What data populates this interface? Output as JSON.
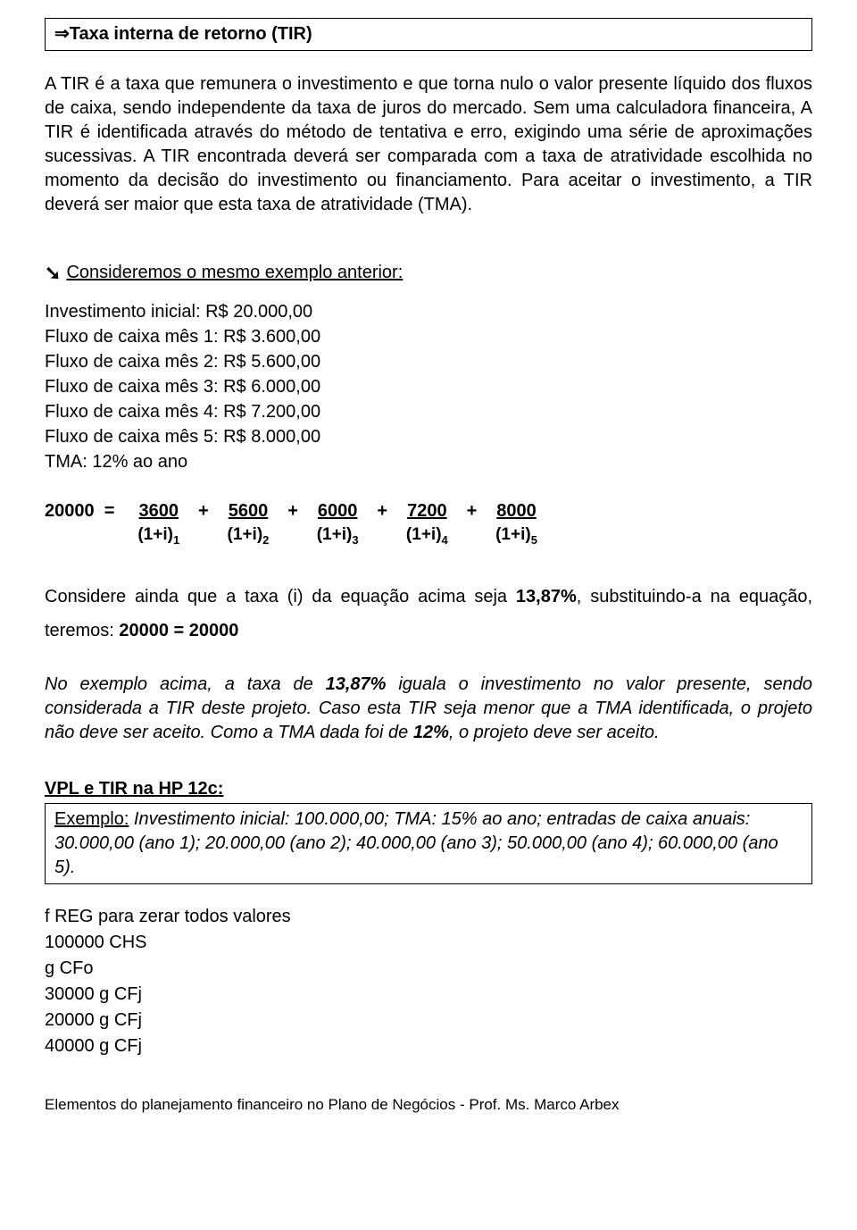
{
  "title": "⇒Taxa interna de retorno (TIR)",
  "intro_para": "A TIR é a taxa que remunera o investimento e que torna nulo o valor presente líquido dos fluxos de caixa, sendo independente da taxa de juros do mercado. Sem uma calculadora financeira, A TIR é identificada através do método de tentativa e erro, exigindo uma série de aproximações sucessivas. A TIR encontrada deverá ser comparada com a taxa de atratividade escolhida no momento da decisão do investimento ou financiamento. Para aceitar o investimento, a TIR deverá ser maior que esta taxa de atratividade (TMA).",
  "section_lead": "Consideremos o mesmo exemplo anterior:",
  "inputs": {
    "inv_inicial": "Investimento inicial: R$ 20.000,00",
    "f1": "Fluxo de caixa mês 1: R$ 3.600,00",
    "f2": "Fluxo de caixa mês 2: R$ 5.600,00",
    "f3": "Fluxo de caixa mês 3: R$ 6.000,00",
    "f4": "Fluxo de caixa mês 4: R$ 7.200,00",
    "f5": "Fluxo de caixa mês 5: R$ 8.000,00",
    "tma": "TMA: 12% ao ano"
  },
  "equation": {
    "lhs": "20000  =  ",
    "terms": [
      {
        "num": "3600",
        "den_base": "(1+i)",
        "den_exp": "1"
      },
      {
        "num": "5600",
        "den_base": "(1+i)",
        "den_exp": "2"
      },
      {
        "num": "6000",
        "den_base": "(1+i)",
        "den_exp": "3"
      },
      {
        "num": "7200",
        "den_base": "(1+i)",
        "den_exp": "4"
      },
      {
        "num": "8000",
        "den_base": "(1+i)",
        "den_exp": "5"
      }
    ],
    "op": "+"
  },
  "consider_pre": "Considere ainda que a taxa  (i) da equação acima seja ",
  "consider_rate": "13,87%",
  "consider_mid": ", substituindo-a na equação, teremos:  ",
  "consider_result": "20000 = 20000",
  "conclusion_pre": "No exemplo acima, a taxa de ",
  "conclusion_rate": "13,87%",
  "conclusion_mid": " iguala o investimento no valor presente, sendo considerada a TIR deste projeto. Caso esta TIR seja menor que a TMA identificada, o projeto não deve ser aceito.  Como a TMA dada foi de ",
  "conclusion_tma": "12%",
  "conclusion_post": ", o projeto deve ser aceito.",
  "vpl_header": "VPL e TIR na HP 12c:",
  "example_label": "Exemplo:",
  "example_text": " Investimento inicial: 100.000,00; TMA: 15% ao ano; entradas de caixa anuais: 30.000,00 (ano 1); 20.000,00 (ano 2); 40.000,00 (ano 3); 50.000,00 (ano 4); 60.000,00 (ano 5).",
  "commands": {
    "c1": "f REG para zerar todos valores",
    "c2": "100000 CHS",
    "c3": "g CFo",
    "c4": "30000 g CFj",
    "c5": "20000 g CFj",
    "c6": "40000 g CFj"
  },
  "footer": "Elementos do planejamento financeiro no Plano de Negócios -  Prof. Ms. Marco Arbex"
}
